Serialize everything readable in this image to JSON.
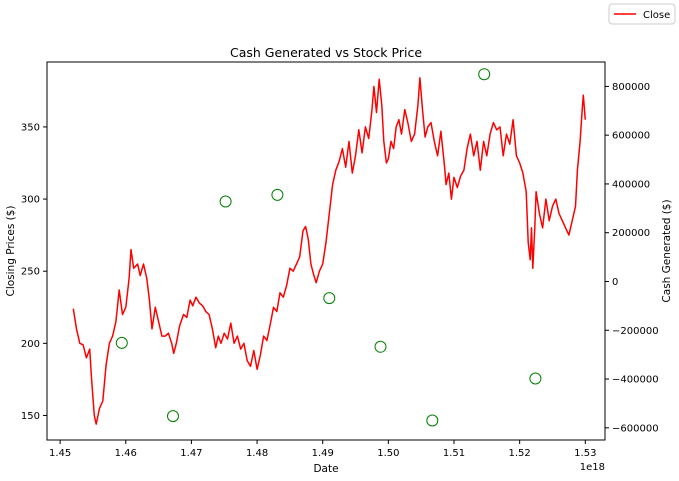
{
  "chart_data": {
    "type": "line",
    "title": "Cash Generated vs Stock Price",
    "xlabel": "Date",
    "x_offset_label": "1e18",
    "x_ticks": [
      1.45,
      1.46,
      1.47,
      1.48,
      1.49,
      1.5,
      1.51,
      1.52,
      1.53
    ],
    "x_tick_labels": [
      "1.45",
      "1.46",
      "1.47",
      "1.48",
      "1.49",
      "1.50",
      "1.51",
      "1.52",
      "1.53"
    ],
    "xlim": [
      1.448,
      1.533
    ],
    "y_left": {
      "label": "Closing Prices ($)",
      "lim": [
        133,
        395
      ],
      "ticks": [
        150,
        200,
        250,
        300,
        350
      ],
      "tick_labels": [
        "150",
        "200",
        "250",
        "300",
        "350"
      ]
    },
    "y_right": {
      "label": "Cash Generated ($)",
      "lim": [
        -650000,
        900000
      ],
      "ticks": [
        -600000,
        -400000,
        -200000,
        0,
        200000,
        400000,
        600000,
        800000
      ],
      "tick_labels": [
        "−600000",
        "−400000",
        "−200000",
        "0",
        "200000",
        "400000",
        "600000",
        "800000"
      ]
    },
    "legend": {
      "entries": [
        "Close"
      ],
      "placement": "top-right (outside axes)"
    },
    "grid": false,
    "series": [
      {
        "name": "Close",
        "kind": "line",
        "axis": "left",
        "color": "#ff0000",
        "points": [
          [
            1.452,
            224
          ],
          [
            1.4525,
            210
          ],
          [
            1.453,
            200
          ],
          [
            1.4535,
            199
          ],
          [
            1.454,
            190
          ],
          [
            1.4545,
            196
          ],
          [
            1.4548,
            175
          ],
          [
            1.4552,
            150
          ],
          [
            1.4555,
            144
          ],
          [
            1.456,
            155
          ],
          [
            1.4565,
            160
          ],
          [
            1.457,
            185
          ],
          [
            1.4575,
            200
          ],
          [
            1.458,
            205
          ],
          [
            1.4585,
            215
          ],
          [
            1.459,
            237
          ],
          [
            1.4595,
            220
          ],
          [
            1.46,
            225
          ],
          [
            1.4605,
            245
          ],
          [
            1.4608,
            265
          ],
          [
            1.4612,
            252
          ],
          [
            1.4618,
            255
          ],
          [
            1.4622,
            247
          ],
          [
            1.4627,
            255
          ],
          [
            1.4632,
            245
          ],
          [
            1.4636,
            230
          ],
          [
            1.464,
            210
          ],
          [
            1.4645,
            225
          ],
          [
            1.465,
            215
          ],
          [
            1.4655,
            205
          ],
          [
            1.466,
            205
          ],
          [
            1.4665,
            207
          ],
          [
            1.467,
            200
          ],
          [
            1.4673,
            193
          ],
          [
            1.4677,
            200
          ],
          [
            1.4682,
            212
          ],
          [
            1.4688,
            220
          ],
          [
            1.4693,
            218
          ],
          [
            1.4698,
            230
          ],
          [
            1.4702,
            226
          ],
          [
            1.4707,
            232
          ],
          [
            1.4712,
            228
          ],
          [
            1.4717,
            226
          ],
          [
            1.4722,
            222
          ],
          [
            1.4727,
            220
          ],
          [
            1.4732,
            210
          ],
          [
            1.4737,
            197
          ],
          [
            1.4741,
            205
          ],
          [
            1.4745,
            200
          ],
          [
            1.475,
            207
          ],
          [
            1.4755,
            203
          ],
          [
            1.476,
            214
          ],
          [
            1.4765,
            200
          ],
          [
            1.477,
            205
          ],
          [
            1.4775,
            196
          ],
          [
            1.478,
            200
          ],
          [
            1.4785,
            188
          ],
          [
            1.479,
            184
          ],
          [
            1.4795,
            195
          ],
          [
            1.48,
            182
          ],
          [
            1.4805,
            192
          ],
          [
            1.481,
            205
          ],
          [
            1.4815,
            202
          ],
          [
            1.482,
            213
          ],
          [
            1.4825,
            225
          ],
          [
            1.483,
            222
          ],
          [
            1.4835,
            235
          ],
          [
            1.484,
            232
          ],
          [
            1.4845,
            240
          ],
          [
            1.485,
            252
          ],
          [
            1.4855,
            250
          ],
          [
            1.486,
            255
          ],
          [
            1.4865,
            260
          ],
          [
            1.487,
            278
          ],
          [
            1.4874,
            281
          ],
          [
            1.4878,
            272
          ],
          [
            1.4882,
            255
          ],
          [
            1.4886,
            248
          ],
          [
            1.489,
            242
          ],
          [
            1.4895,
            250
          ],
          [
            1.49,
            255
          ],
          [
            1.4905,
            270
          ],
          [
            1.491,
            290
          ],
          [
            1.4915,
            310
          ],
          [
            1.492,
            320
          ],
          [
            1.4925,
            326
          ],
          [
            1.493,
            335
          ],
          [
            1.4935,
            322
          ],
          [
            1.494,
            340
          ],
          [
            1.4945,
            318
          ],
          [
            1.495,
            330
          ],
          [
            1.4955,
            348
          ],
          [
            1.496,
            332
          ],
          [
            1.4965,
            350
          ],
          [
            1.497,
            342
          ],
          [
            1.4975,
            362
          ],
          [
            1.4978,
            378
          ],
          [
            1.4982,
            360
          ],
          [
            1.4986,
            383
          ],
          [
            1.499,
            365
          ],
          [
            1.4993,
            340
          ],
          [
            1.4997,
            325
          ],
          [
            1.5,
            328
          ],
          [
            1.5004,
            340
          ],
          [
            1.5008,
            335
          ],
          [
            1.5012,
            350
          ],
          [
            1.5016,
            355
          ],
          [
            1.502,
            345
          ],
          [
            1.5025,
            362
          ],
          [
            1.503,
            352
          ],
          [
            1.5035,
            340
          ],
          [
            1.504,
            345
          ],
          [
            1.5045,
            365
          ],
          [
            1.5048,
            384
          ],
          [
            1.5052,
            362
          ],
          [
            1.5056,
            343
          ],
          [
            1.506,
            350
          ],
          [
            1.5065,
            353
          ],
          [
            1.507,
            340
          ],
          [
            1.5075,
            330
          ],
          [
            1.508,
            347
          ],
          [
            1.5085,
            325
          ],
          [
            1.5088,
            310
          ],
          [
            1.5092,
            318
          ],
          [
            1.5096,
            300
          ],
          [
            1.51,
            315
          ],
          [
            1.5105,
            308
          ],
          [
            1.511,
            316
          ],
          [
            1.5115,
            320
          ],
          [
            1.512,
            335
          ],
          [
            1.5125,
            345
          ],
          [
            1.513,
            330
          ],
          [
            1.5135,
            340
          ],
          [
            1.514,
            320
          ],
          [
            1.5145,
            340
          ],
          [
            1.515,
            330
          ],
          [
            1.5155,
            345
          ],
          [
            1.516,
            353
          ],
          [
            1.5165,
            348
          ],
          [
            1.517,
            350
          ],
          [
            1.5175,
            330
          ],
          [
            1.518,
            345
          ],
          [
            1.5185,
            338
          ],
          [
            1.519,
            355
          ],
          [
            1.5195,
            330
          ],
          [
            1.52,
            325
          ],
          [
            1.5205,
            318
          ],
          [
            1.521,
            305
          ],
          [
            1.5213,
            270
          ],
          [
            1.5216,
            258
          ],
          [
            1.5218,
            280
          ],
          [
            1.522,
            252
          ],
          [
            1.5223,
            280
          ],
          [
            1.5225,
            305
          ],
          [
            1.523,
            290
          ],
          [
            1.5235,
            280
          ],
          [
            1.524,
            300
          ],
          [
            1.5245,
            285
          ],
          [
            1.525,
            295
          ],
          [
            1.5255,
            300
          ],
          [
            1.526,
            290
          ],
          [
            1.5265,
            285
          ],
          [
            1.527,
            280
          ],
          [
            1.5275,
            275
          ],
          [
            1.528,
            285
          ],
          [
            1.5285,
            295
          ],
          [
            1.5288,
            320
          ],
          [
            1.5292,
            340
          ],
          [
            1.5295,
            360
          ],
          [
            1.5297,
            372
          ],
          [
            1.53,
            355
          ]
        ]
      },
      {
        "name": "",
        "kind": "scatter",
        "axis": "right",
        "color": "#008000",
        "marker": "open-circle",
        "points": [
          [
            1.4594,
            -252000
          ],
          [
            1.4672,
            -552000
          ],
          [
            1.4752,
            328000
          ],
          [
            1.4831,
            355000
          ],
          [
            1.491,
            -68000
          ],
          [
            1.4988,
            -268000
          ],
          [
            1.5067,
            -570000
          ],
          [
            1.5146,
            850000
          ],
          [
            1.5224,
            -398000
          ]
        ]
      }
    ]
  }
}
